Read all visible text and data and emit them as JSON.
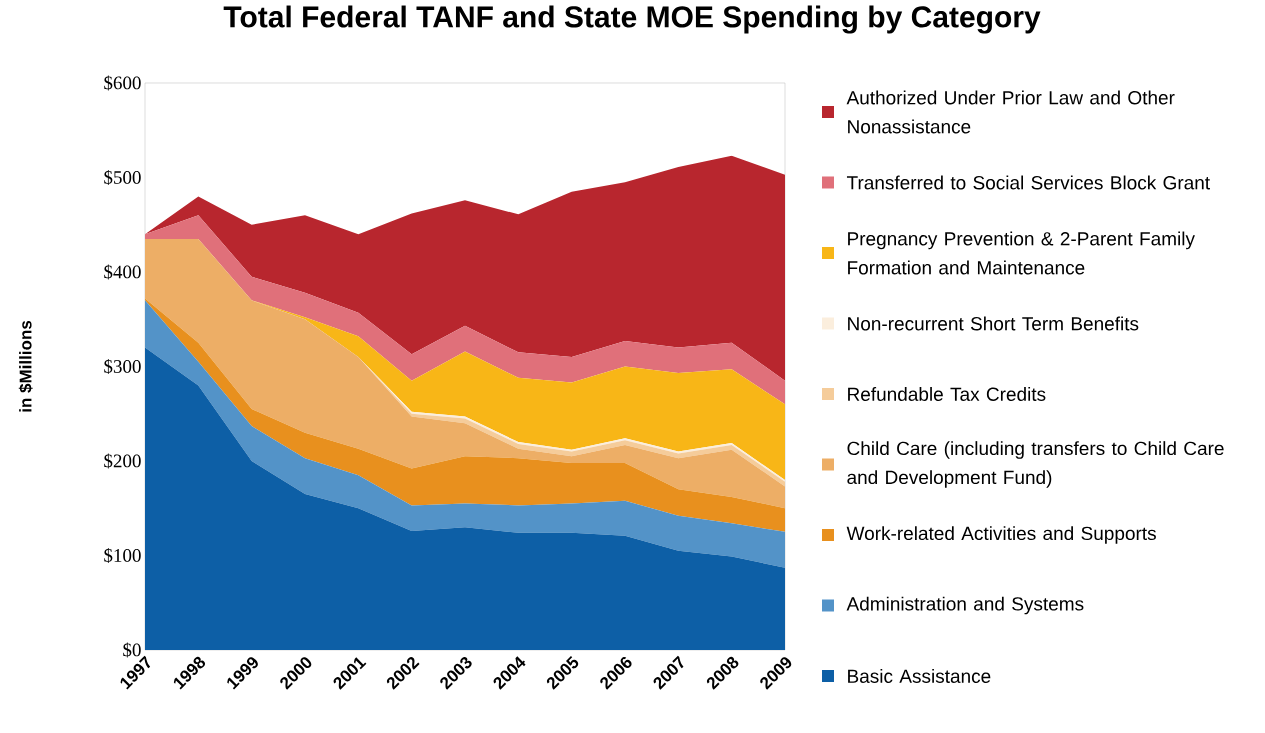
{
  "chart_data": {
    "type": "area",
    "stacked": true,
    "title": "Total Federal TANF and State MOE Spending by Category",
    "ylabel": "in $Millions",
    "categories": [
      "1997",
      "1998",
      "1999",
      "2000",
      "2001",
      "2002",
      "2003",
      "2004",
      "2005",
      "2006",
      "2007",
      "2008",
      "2009"
    ],
    "ylim": [
      0,
      600
    ],
    "yticks": [
      {
        "value": 0,
        "label": "$0"
      },
      {
        "value": 100,
        "label": "$100"
      },
      {
        "value": 200,
        "label": "$200"
      },
      {
        "value": 300,
        "label": "$300"
      },
      {
        "value": 400,
        "label": "$400"
      },
      {
        "value": 500,
        "label": "$500"
      },
      {
        "value": 600,
        "label": "$600"
      }
    ],
    "grid": false,
    "legend": "right",
    "series": [
      {
        "name": "Basic Assistance",
        "color": "#0d5fa6",
        "values": [
          320,
          280,
          200,
          165,
          150,
          126,
          130,
          124,
          124,
          121,
          105,
          99,
          87
        ]
      },
      {
        "name": "Administration and Systems",
        "color": "#5393c8",
        "values": [
          50,
          25,
          37,
          38,
          35,
          27,
          25,
          29,
          31,
          37,
          37,
          35,
          38
        ]
      },
      {
        "name": "Work-related Activities and Supports",
        "color": "#e8901e",
        "values": [
          2,
          20,
          18,
          27,
          28,
          39,
          50,
          50,
          43,
          40,
          28,
          28,
          25
        ]
      },
      {
        "name": "Child Care (including transfers to Child Care and Development Fund)",
        "color": "#edae66",
        "values": [
          63,
          110,
          115,
          120,
          97,
          55,
          35,
          10,
          7,
          19,
          33,
          50,
          23
        ]
      },
      {
        "name": "Refundable Tax Credits",
        "color": "#f5cc9a",
        "values": [
          0,
          0,
          0,
          0,
          0,
          3,
          5,
          5,
          5,
          5,
          5,
          5,
          5
        ]
      },
      {
        "name": "Non-recurrent Short Term Benefits",
        "color": "#fbeedd",
        "values": [
          0,
          0,
          0,
          0,
          0,
          2,
          2,
          2,
          2,
          2,
          2,
          2,
          2
        ]
      },
      {
        "name": "Pregnancy Prevention & 2-Parent Family Formation and Maintenance",
        "color": "#f8b617",
        "values": [
          0,
          0,
          0,
          2,
          22,
          33,
          69,
          68,
          71,
          76,
          83,
          78,
          80
        ]
      },
      {
        "name": "Transferred to Social Services Block Grant",
        "color": "#e0707a",
        "values": [
          5,
          25,
          25,
          26,
          25,
          28,
          27,
          27,
          27,
          27,
          27,
          28,
          25
        ]
      },
      {
        "name": "Authorized Under Prior Law and Other Nonassistance",
        "color": "#b8262e",
        "values": [
          0,
          20,
          55,
          82,
          83,
          149,
          133,
          146,
          175,
          168,
          191,
          198,
          218
        ]
      }
    ]
  }
}
